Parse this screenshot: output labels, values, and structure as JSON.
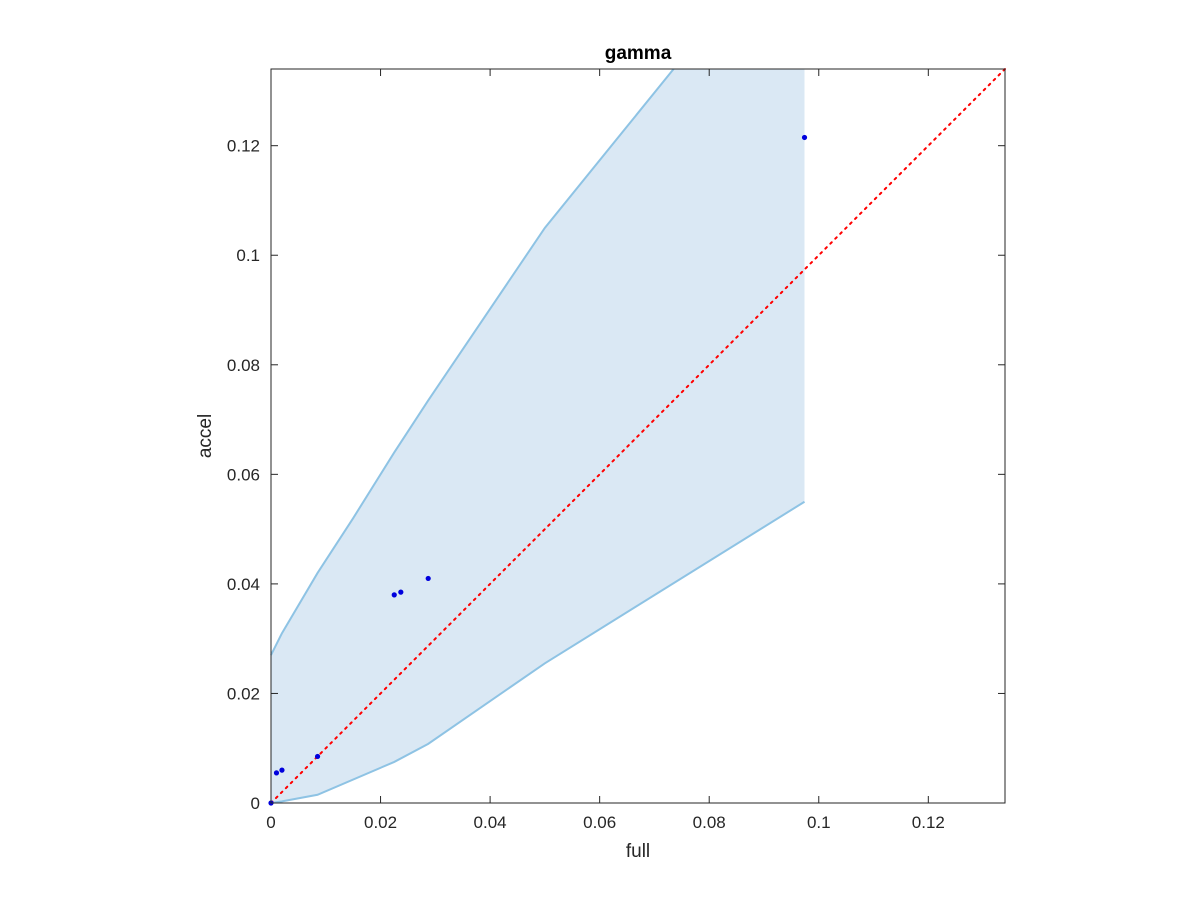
{
  "chart_data": {
    "type": "scatter",
    "title": "gamma",
    "xlabel": "full",
    "ylabel": "accel",
    "xlim": [
      0,
      0.134
    ],
    "ylim": [
      0,
      0.134
    ],
    "x_ticks": [
      0,
      0.02,
      0.04,
      0.06,
      0.08,
      0.1,
      0.12
    ],
    "x_tick_labels": [
      "0",
      "0.02",
      "0.04",
      "0.06",
      "0.08",
      "0.1",
      "0.12"
    ],
    "y_ticks": [
      0,
      0.02,
      0.04,
      0.06,
      0.08,
      0.1,
      0.12
    ],
    "y_tick_labels": [
      "0",
      "0.02",
      "0.04",
      "0.06",
      "0.08",
      "0.1",
      "0.12"
    ],
    "grid": false,
    "points": [
      {
        "x": 0.0,
        "y": 0.0
      },
      {
        "x": 0.001,
        "y": 0.0055
      },
      {
        "x": 0.002,
        "y": 0.006
      },
      {
        "x": 0.0085,
        "y": 0.0085
      },
      {
        "x": 0.0225,
        "y": 0.038
      },
      {
        "x": 0.0237,
        "y": 0.0385
      },
      {
        "x": 0.0287,
        "y": 0.041
      },
      {
        "x": 0.0974,
        "y": 0.1215
      }
    ],
    "band_upper": [
      {
        "x": 0.0,
        "y": 0.027
      },
      {
        "x": 0.002,
        "y": 0.031
      },
      {
        "x": 0.0085,
        "y": 0.042
      },
      {
        "x": 0.015,
        "y": 0.052
      },
      {
        "x": 0.0225,
        "y": 0.064
      },
      {
        "x": 0.0287,
        "y": 0.0735
      },
      {
        "x": 0.05,
        "y": 0.105
      },
      {
        "x": 0.0735,
        "y": 0.134
      }
    ],
    "band_lower": [
      {
        "x": 0.0,
        "y": 0.0
      },
      {
        "x": 0.002,
        "y": 0.0003
      },
      {
        "x": 0.0085,
        "y": 0.0015
      },
      {
        "x": 0.0225,
        "y": 0.0075
      },
      {
        "x": 0.0287,
        "y": 0.0108
      },
      {
        "x": 0.05,
        "y": 0.0255
      },
      {
        "x": 0.0974,
        "y": 0.055
      }
    ],
    "band_right_x": 0.0974,
    "identity_line": {
      "from": [
        0,
        0
      ],
      "to": [
        0.134,
        0.134
      ]
    },
    "colors": {
      "points": "#0000dd",
      "band_fill": "#dae8f4",
      "band_edge": "#8ec3e4",
      "identity_line": "#ff0000",
      "axes": "#262626"
    }
  }
}
